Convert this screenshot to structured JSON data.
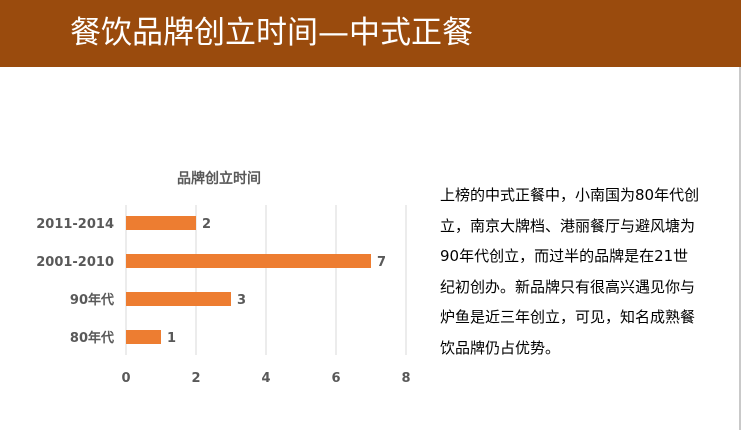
{
  "header": {
    "title": "餐饮品牌创立时间—中式正餐"
  },
  "colors": {
    "header_bg": "#9a4b0d",
    "bar": "#ed7d31",
    "grid": "#d9d9d9",
    "tick_text": "#595959"
  },
  "chart_data": {
    "type": "bar",
    "orientation": "horizontal",
    "title": "品牌创立时间",
    "categories": [
      "2011-2014",
      "2001-2010",
      "90年代",
      "80年代"
    ],
    "values": [
      2,
      7,
      3,
      1
    ],
    "xlim": [
      0,
      8
    ],
    "xticks": [
      "0",
      "2",
      "4",
      "6",
      "8"
    ],
    "grid": true,
    "legend": "none"
  },
  "description": {
    "text": "上榜的中式正餐中，小南国为80年代创立，南京大牌档、港丽餐厅与避风塘为90年代创立，而过半的品牌是在21世纪初创办。新品牌只有很高兴遇见你与炉鱼是近三年创立，可见，知名成熟餐饮品牌仍占优势。"
  }
}
